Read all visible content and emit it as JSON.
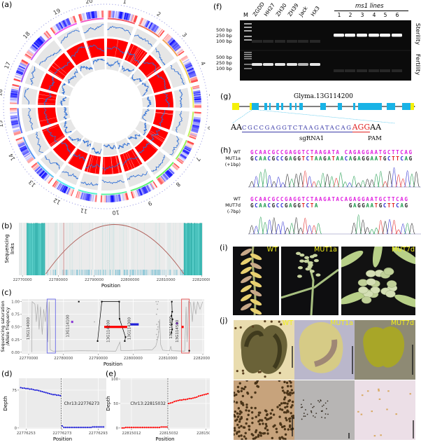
{
  "panels": {
    "a": "(a)",
    "b": "(b)",
    "c": "(c)",
    "d": "(d)",
    "e": "(e)",
    "f": "(f)",
    "g": "(g)",
    "h": "(h)",
    "i": "(i)",
    "j": "(j)"
  },
  "circos": {
    "chromosomes": [
      "1",
      "2",
      "3",
      "4",
      "5",
      "6",
      "7",
      "8",
      "9",
      "10",
      "11",
      "12",
      "13",
      "14",
      "15",
      "16",
      "17",
      "18",
      "19",
      "20"
    ],
    "colors": {
      "heat_low": "#0000ff",
      "heat_high": "#ff2a2a",
      "line": "#2f6fd6",
      "band": "#ff0000",
      "track_bg": "#e6e6e6",
      "dots": "#8c8ce0"
    }
  },
  "chart_data": [
    {
      "panel": "b",
      "type": "other",
      "ylabel": "Sequencing links",
      "xlabel": "Position",
      "xlim": [
        22769000,
        22820300
      ],
      "xticks": [
        22770000,
        22780000,
        22790000,
        22800000,
        22810000,
        22820000
      ],
      "link_arc": [
        22776500,
        22815000
      ],
      "dense_regions": [
        [
          22771200,
          22776300
        ],
        [
          22815000,
          22820100
        ]
      ],
      "highlight_x": 22781500,
      "colors": {
        "links": "#3cc6c0",
        "arc": "#b0605a",
        "highlight": "#d08080"
      },
      "grid": true
    },
    {
      "panel": "c",
      "type": "line",
      "ylabel": "Sequencing saturation /Allele frequency",
      "xlabel": "Position",
      "xlim": [
        22768000,
        22820400
      ],
      "ylim": [
        -0.03,
        1.05
      ],
      "xticks": [
        22770000,
        22780000,
        22790000,
        22800000,
        22810000,
        22820000
      ],
      "yticks": [
        0.0,
        0.25,
        0.5,
        0.75,
        1.0
      ],
      "ytick_labels": [
        "0.00",
        "0.25",
        "0.50",
        "0.75",
        "1.00"
      ],
      "saturation": [
        [
          22770900,
          0
        ],
        [
          22771000,
          1
        ],
        [
          22771800,
          0.95
        ],
        [
          22772200,
          0.6
        ],
        [
          22772600,
          0.95
        ],
        [
          22773000,
          0.45
        ],
        [
          22773400,
          0.9
        ],
        [
          22773900,
          0.35
        ],
        [
          22774300,
          0.85
        ],
        [
          22774800,
          0.6
        ],
        [
          22775200,
          1
        ],
        [
          22775500,
          0.2
        ],
        [
          22775900,
          1
        ],
        [
          22776200,
          0.05
        ],
        [
          22777000,
          0.02
        ],
        [
          22785000,
          0.03
        ],
        [
          22795000,
          0.02
        ],
        [
          22796200,
          0.2
        ],
        [
          22796500,
          0.03
        ],
        [
          22805500,
          0.05
        ],
        [
          22806500,
          0.12
        ],
        [
          22807200,
          0.3
        ],
        [
          22807600,
          0.65
        ],
        [
          22807900,
          0.15
        ],
        [
          22808500,
          0.04
        ],
        [
          22810500,
          0.03
        ],
        [
          22810800,
          0.12
        ],
        [
          22811100,
          0.03
        ],
        [
          22814800,
          0.02
        ],
        [
          22815200,
          0.9
        ],
        [
          22815500,
          0.2
        ],
        [
          22815900,
          1
        ],
        [
          22816500,
          0.98
        ],
        [
          22817000,
          0.6
        ],
        [
          22817400,
          1
        ],
        [
          22818000,
          0.75
        ],
        [
          22818500,
          1
        ],
        [
          22819200,
          0.85
        ],
        [
          22820000,
          1
        ]
      ],
      "gray_points": [
        [
          22806600,
          1
        ],
        [
          22807200,
          1
        ],
        [
          22806900,
          0.95
        ],
        [
          22807000,
          0.85
        ],
        [
          22806700,
          0.75
        ],
        [
          22807300,
          0.6
        ],
        [
          22806800,
          0.55
        ],
        [
          22807100,
          0.5
        ],
        [
          22806900,
          0.45
        ],
        [
          22807300,
          0.4
        ],
        [
          22806700,
          0.35
        ],
        [
          22807000,
          0.3
        ],
        [
          22806800,
          0.25
        ],
        [
          22788900,
          0.6
        ]
      ],
      "allele_freq_lines": [
        [
          [
            22789800,
            0.22
          ],
          [
            22791000,
            1.0
          ],
          [
            22796000,
            1.0
          ],
          [
            22796100,
            0.66
          ],
          [
            22797800,
            0.3
          ],
          [
            22797600,
            0.22
          ]
        ],
        [
          [
            22811100,
            1.0
          ],
          [
            22811200,
            0.8
          ],
          [
            22811000,
            0.72
          ],
          [
            22811300,
            0.65
          ],
          [
            22811100,
            0.55
          ],
          [
            22811200,
            0.45
          ],
          [
            22811000,
            0.38
          ]
        ]
      ],
      "allele_freq_points": [
        [
          22784400,
          1.0
        ],
        [
          22816100,
          0.03
        ]
      ],
      "genes": [
        {
          "label": "13G114000",
          "x": 22770600,
          "y": 0.55,
          "color": "#555555"
        },
        {
          "label": "13G114100",
          "x": 22782000,
          "y": 0.6,
          "color": "#8a3ad6",
          "span": [
            22782200,
            22782600
          ]
        },
        {
          "label": "13G114200",
          "x": 22793600,
          "y": 0.5,
          "color": "#ff0000",
          "span": [
            22791700,
            22798300
          ]
        },
        {
          "label": "13G114300",
          "x": 22799600,
          "y": 0.55,
          "color": "#1f1fd8",
          "span": [
            22799200,
            22801600
          ]
        },
        {
          "label": "13G114400",
          "x": 22811600,
          "y": 0.57,
          "color": "#8a3ad6",
          "span": [
            22812300,
            22812700
          ]
        },
        {
          "label": "13G114500",
          "x": 22813400,
          "y": 0.5,
          "color": "#ff0000",
          "span": [
            22813900,
            22814300
          ]
        }
      ],
      "boxes": [
        {
          "range": [
            22775300,
            22777700
          ],
          "color": "#6a6ae8"
        },
        {
          "range": [
            22813900,
            22816100
          ],
          "color": "#e85050"
        }
      ],
      "grid": true
    },
    {
      "panel": "d",
      "type": "scatter",
      "xlabel": "Position",
      "ylabel": "Depth",
      "xlim": [
        22776249,
        22776297.5
      ],
      "ylim": [
        -1.5,
        98.5
      ],
      "xticks": [
        22776253,
        22776273,
        22776293
      ],
      "yticks": [
        0,
        75
      ],
      "breakpoint": 22776273,
      "breakpoint_label": "Chr13:22776273",
      "color": "#1f1fd8",
      "x": [
        22776250,
        22776251,
        22776252,
        22776253,
        22776254,
        22776255,
        22776256,
        22776257,
        22776258,
        22776259,
        22776260,
        22776261,
        22776262,
        22776263,
        22776264,
        22776265,
        22776266,
        22776267,
        22776268,
        22776269,
        22776270,
        22776271,
        22776272,
        22776273,
        22776274,
        22776275,
        22776276,
        22776277,
        22776278,
        22776279,
        22776280,
        22776281,
        22776282,
        22776283,
        22776284,
        22776285,
        22776286,
        22776287,
        22776288,
        22776289,
        22776290,
        22776291,
        22776292,
        22776293,
        22776294,
        22776295,
        22776296
      ],
      "y": [
        80,
        79,
        79,
        78,
        78,
        77,
        77,
        76,
        75,
        75,
        74,
        73,
        72,
        71,
        70,
        69,
        68,
        67,
        66,
        66,
        65,
        65,
        64,
        4,
        1,
        1,
        1,
        1,
        1,
        1,
        1,
        1,
        1,
        1,
        1,
        1,
        1,
        1,
        1,
        1,
        2,
        2,
        2,
        2,
        2,
        2,
        2
      ]
    },
    {
      "panel": "e",
      "type": "scatter",
      "xlabel": "Position",
      "ylabel": "Depth",
      "xlim": [
        22815006,
        22815054
      ],
      "ylim": [
        -1.5,
        101.5
      ],
      "xticks": [
        22815012,
        22815032,
        22815052
      ],
      "yticks": [
        0,
        50,
        100
      ],
      "breakpoint": 22815032,
      "breakpoint_label": "Chr13:22815032",
      "color": "#ff0000",
      "x": [
        22815007,
        22815008,
        22815009,
        22815010,
        22815011,
        22815012,
        22815013,
        22815014,
        22815015,
        22815016,
        22815017,
        22815018,
        22815019,
        22815020,
        22815021,
        22815022,
        22815023,
        22815024,
        22815025,
        22815026,
        22815027,
        22815028,
        22815029,
        22815030,
        22815031,
        22815032,
        22815033,
        22815034,
        22815035,
        22815036,
        22815037,
        22815038,
        22815039,
        22815040,
        22815041,
        22815042,
        22815043,
        22815044,
        22815045,
        22815046,
        22815047,
        22815048,
        22815049,
        22815050,
        22815051,
        22815052,
        22815053
      ],
      "y": [
        0,
        0,
        1,
        1,
        1,
        1,
        1,
        1,
        1,
        1,
        1,
        1,
        1,
        1,
        1,
        1,
        1,
        1,
        1,
        1,
        1,
        2,
        2,
        2,
        2,
        50,
        51,
        52,
        54,
        55,
        56,
        57,
        57,
        58,
        58,
        59,
        60,
        60,
        61,
        62,
        63,
        65,
        66,
        67,
        68,
        69,
        70
      ]
    }
  ],
  "gel": {
    "marker": "M",
    "lanes": [
      "ZGDD",
      "HH27",
      "ZH30",
      "ZH39",
      "Jack",
      "HX3"
    ],
    "group_label": "ms1 lines",
    "group_lanes": [
      "1",
      "2",
      "3",
      "4",
      "5",
      "6"
    ],
    "ladder_top": [
      "500 bp",
      "250 bp",
      "100 bp"
    ],
    "ladder_bottom": [
      "500 bp",
      "250 bp",
      "100 bp"
    ],
    "row_labels": [
      "Sterility",
      "Fertility"
    ]
  },
  "gene": {
    "name": "Glyma.13G114200",
    "seq_prefix": "AA",
    "sgrna_seq": "CGCCGAGGTCTAAGATACAG",
    "pam_seq": "AGG",
    "seq_suffix": "AA",
    "sgrna_label": "sgRNA1",
    "pam_label": "PAM",
    "colors": {
      "exon": "#19b3e6",
      "utr": "#f5f00a",
      "sgrna": "#3a3aa8",
      "pam": "#e02020"
    }
  },
  "chromatogram": {
    "base_colors": {
      "A": "#1a9a4a",
      "C": "#2a2ad0",
      "G": "#222222",
      "T": "#e02020",
      "wt": "#e020e0"
    },
    "mut1": {
      "wt_label": "WT",
      "wt_seq": "GCAACGCCGAGGTCTAAGATA CAGAGGAATGCTTCAG",
      "mut_label": "MUT1a",
      "mut_seq": "GCAACGCCGAGGTCTAAGATAACAGAGGAATGCTTCAG",
      "note": "(+1bp)"
    },
    "mut7": {
      "wt_label": "WT",
      "wt_seq": "GCAACGCCGAGGTCTAAGATACAGAGGAATGCTTCAG",
      "mut_label": "MUT7d",
      "mut_seq": "GCAACGCCGAGGTCTA       GAGGAATGCTTCAG",
      "note": "(-7bp)"
    }
  },
  "photos": {
    "plants": [
      "WT",
      "MUT1a",
      "MUT7d"
    ],
    "anthers": [
      "WT",
      "MUT1a",
      "MUT7d"
    ]
  }
}
